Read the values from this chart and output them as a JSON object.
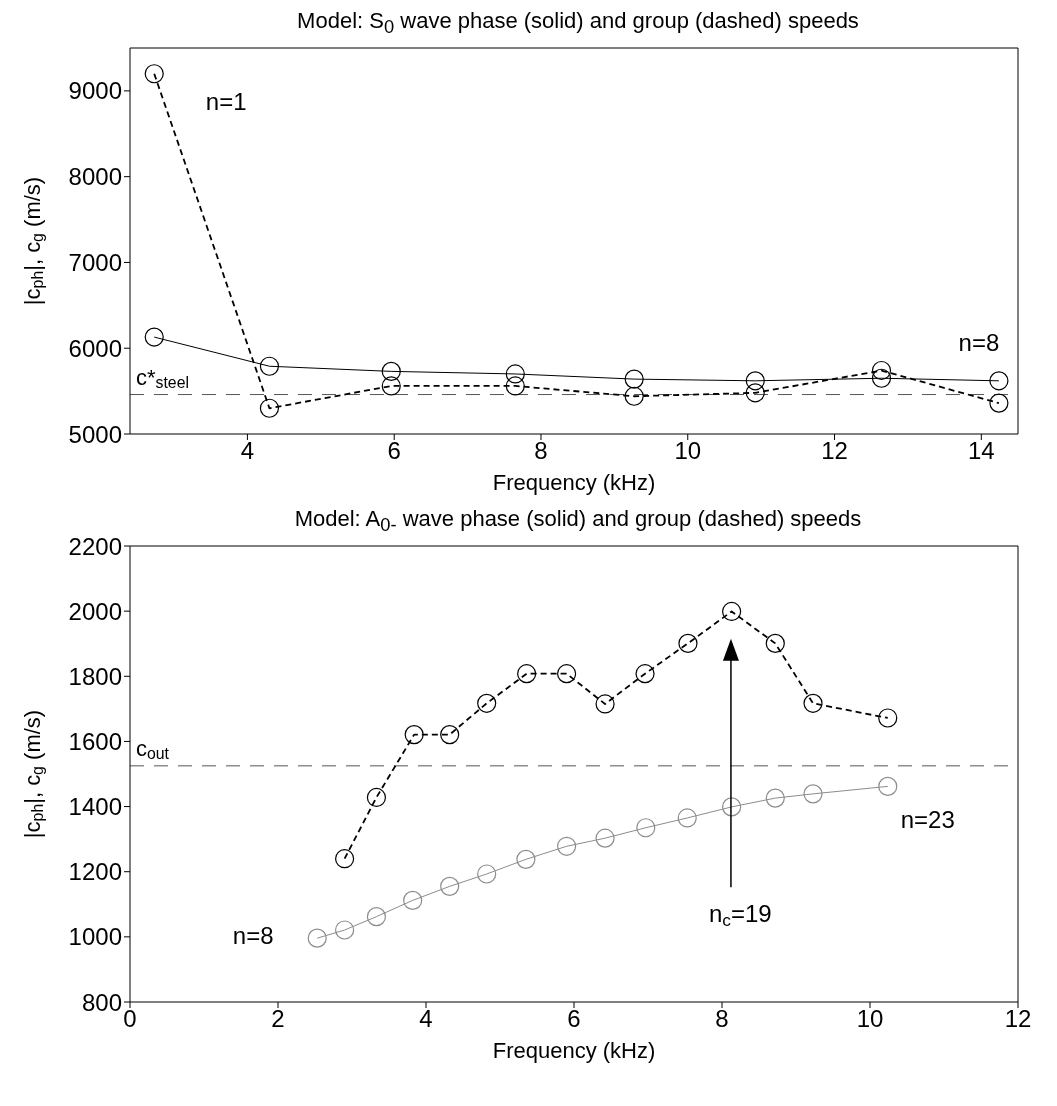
{
  "chart_data": [
    {
      "type": "line",
      "title": "Model: S$_{0}$ wave phase (solid) and group (dashed) speeds",
      "xlabel": "Frequency (kHz)",
      "ylabel": "|c$_{ph}$|, c$_{g}$ (m/s)",
      "xlim": [
        2.4,
        14.5
      ],
      "xticks": [
        4,
        6,
        8,
        10,
        12,
        14
      ],
      "ylim": [
        5000,
        9500
      ],
      "yticks": [
        5000,
        6000,
        7000,
        8000,
        9000
      ],
      "marker": "circle",
      "series": [
        {
          "color": "#000000",
          "line_style": "solid",
          "x": [
            2.73,
            4.3,
            5.96,
            7.65,
            9.27,
            10.92,
            12.64,
            14.24
          ],
          "values": [
            6130,
            5790,
            5730,
            5700,
            5640,
            5620,
            5650,
            5620
          ]
        },
        {
          "color": "#000000",
          "line_style": "dashed",
          "x": [
            2.73,
            4.3,
            5.96,
            7.65,
            9.27,
            10.92,
            12.64,
            14.24
          ],
          "values": [
            9200,
            5300,
            5560,
            5560,
            5440,
            5480,
            5740,
            5360
          ]
        }
      ],
      "ref_lines": [
        {
          "axis": "y",
          "value": 5460,
          "label": "c*$_{steel}$",
          "color": "#555555",
          "line_style": "dashed"
        }
      ],
      "annotations": [
        {
          "text": "n=1",
          "x": 2.73,
          "y": 9200
        },
        {
          "text": "n=8",
          "x": 14.24,
          "y": 5620
        }
      ]
    },
    {
      "type": "line",
      "title": "Model: A$_{0-}$ wave phase (solid) and group (dashed) speeds",
      "xlabel": "Frequency (kHz)",
      "ylabel": "|c$_{ph}$|, c$_{g}$ (m/s)",
      "xlim": [
        0,
        12
      ],
      "xticks": [
        0,
        2,
        4,
        6,
        8,
        10,
        12
      ],
      "ylim": [
        800,
        2200
      ],
      "yticks": [
        800,
        1000,
        1200,
        1400,
        1600,
        1800,
        2000,
        2200
      ],
      "marker": "circle",
      "series": [
        {
          "color": "#8c8c8c",
          "line_style": "solid",
          "x": [
            2.53,
            2.9,
            3.33,
            3.82,
            4.32,
            4.82,
            5.35,
            5.9,
            6.42,
            6.97,
            7.53,
            8.13,
            8.72,
            9.23,
            10.24
          ],
          "values": [
            996,
            1021,
            1062,
            1112,
            1155,
            1193,
            1238,
            1278,
            1303,
            1335,
            1365,
            1399,
            1426,
            1439,
            1462
          ]
        },
        {
          "color": "#000000",
          "line_style": "dashed",
          "x": [
            2.9,
            3.33,
            3.84,
            4.32,
            4.82,
            5.36,
            5.9,
            6.42,
            6.96,
            7.54,
            8.13,
            8.72,
            9.23,
            10.24
          ],
          "values": [
            1240,
            1428,
            1621,
            1621,
            1717,
            1808,
            1808,
            1715,
            1808,
            1901,
            1999,
            1901,
            1717,
            1672
          ]
        }
      ],
      "ref_lines": [
        {
          "axis": "y",
          "value": 1525,
          "label": "c$_{out}$",
          "color": "#555555",
          "line_style": "dashed"
        }
      ],
      "annotations": [
        {
          "text": "n=8",
          "x": 2.53,
          "y": 996
        },
        {
          "text": "n=23",
          "x": 10.24,
          "y": 1462
        },
        "n$_{c}$=19"
      ]
    }
  ]
}
